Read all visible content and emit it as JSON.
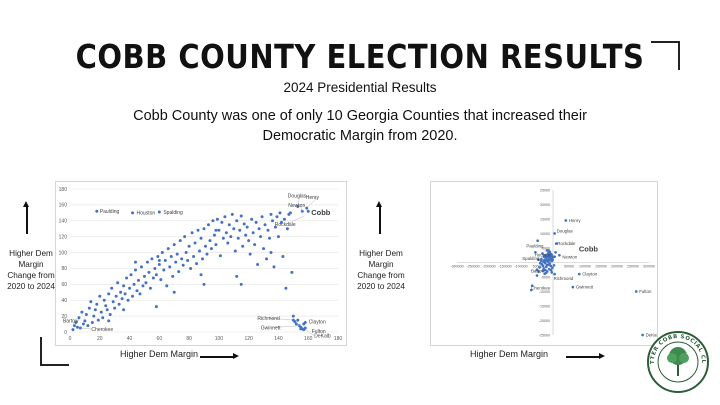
{
  "slide": {
    "title": "COBB COUNTY ELECTION RESULTS",
    "subtitle": "2024 Presidential Results",
    "description": "Cobb County was one of only 10 Georgia Counties that increased their Democratic Margin from 2020."
  },
  "left_panel": {
    "ylabel": "Higher Dem Margin Change from 2020 to 2024",
    "xlabel": "Higher Dem Margin"
  },
  "right_panel": {
    "ylabel": "Higher Dem Margin Change from 2020 to 2024",
    "xlabel": "Higher Dem Margin"
  },
  "logo": {
    "text": "BETTER COBB SOCIAL CLUB"
  },
  "colors": {
    "point": "#4472c4",
    "grid": "#e3e3e3",
    "axis_text": "#595959",
    "leader": "#a6a6a6"
  },
  "chart_data": [
    {
      "type": "scatter",
      "xlim": [
        0,
        180
      ],
      "ylim": [
        0,
        180
      ],
      "xticks": [
        0,
        20,
        40,
        60,
        80,
        100,
        120,
        140,
        160,
        180
      ],
      "yticks": [
        0,
        20,
        40,
        60,
        80,
        100,
        120,
        140,
        160,
        180
      ],
      "grid": "horizontal",
      "points": [
        [
          2,
          3
        ],
        [
          3,
          8
        ],
        [
          4,
          12
        ],
        [
          5,
          6
        ],
        [
          6,
          18
        ],
        [
          7,
          5
        ],
        [
          8,
          25
        ],
        [
          9,
          10
        ],
        [
          10,
          14
        ],
        [
          11,
          22
        ],
        [
          12,
          8
        ],
        [
          13,
          30
        ],
        [
          14,
          38
        ],
        [
          15,
          12
        ],
        [
          16,
          20
        ],
        [
          17,
          28
        ],
        [
          18,
          35
        ],
        [
          19,
          15
        ],
        [
          20,
          45
        ],
        [
          21,
          25
        ],
        [
          22,
          18
        ],
        [
          23,
          40
        ],
        [
          24,
          33
        ],
        [
          25,
          28
        ],
        [
          26,
          48
        ],
        [
          27,
          22
        ],
        [
          28,
          55
        ],
        [
          29,
          38
        ],
        [
          30,
          30
        ],
        [
          31,
          45
        ],
        [
          32,
          62
        ],
        [
          33,
          35
        ],
        [
          34,
          50
        ],
        [
          35,
          42
        ],
        [
          36,
          58
        ],
        [
          37,
          48
        ],
        [
          38,
          68
        ],
        [
          39,
          40
        ],
        [
          40,
          55
        ],
        [
          41,
          72
        ],
        [
          42,
          45
        ],
        [
          43,
          60
        ],
        [
          44,
          78
        ],
        [
          45,
          52
        ],
        [
          46,
          65
        ],
        [
          47,
          48
        ],
        [
          48,
          82
        ],
        [
          49,
          58
        ],
        [
          50,
          70
        ],
        [
          51,
          62
        ],
        [
          52,
          88
        ],
        [
          53,
          75
        ],
        [
          54,
          55
        ],
        [
          55,
          92
        ],
        [
          56,
          68
        ],
        [
          57,
          80
        ],
        [
          58,
          72
        ],
        [
          59,
          95
        ],
        [
          60,
          85
        ],
        [
          61,
          66
        ],
        [
          62,
          100
        ],
        [
          63,
          78
        ],
        [
          64,
          90
        ],
        [
          65,
          58
        ],
        [
          66,
          105
        ],
        [
          67,
          82
        ],
        [
          68,
          95
        ],
        [
          69,
          70
        ],
        [
          70,
          110
        ],
        [
          71,
          88
        ],
        [
          72,
          98
        ],
        [
          73,
          76
        ],
        [
          74,
          115
        ],
        [
          75,
          92
        ],
        [
          76,
          84
        ],
        [
          77,
          120
        ],
        [
          78,
          100
        ],
        [
          79,
          90
        ],
        [
          80,
          108
        ],
        [
          81,
          80
        ],
        [
          82,
          125
        ],
        [
          83,
          95
        ],
        [
          84,
          112
        ],
        [
          85,
          86
        ],
        [
          86,
          128
        ],
        [
          87,
          102
        ],
        [
          88,
          118
        ],
        [
          89,
          92
        ],
        [
          90,
          130
        ],
        [
          91,
          108
        ],
        [
          92,
          98
        ],
        [
          93,
          135
        ],
        [
          94,
          115
        ],
        [
          95,
          105
        ],
        [
          96,
          140
        ],
        [
          97,
          122
        ],
        [
          98,
          110
        ],
        [
          99,
          142
        ],
        [
          100,
          128
        ],
        [
          101,
          96
        ],
        [
          102,
          138
        ],
        [
          103,
          118
        ],
        [
          104,
          145
        ],
        [
          105,
          125
        ],
        [
          106,
          112
        ],
        [
          107,
          135
        ],
        [
          108,
          120
        ],
        [
          109,
          148
        ],
        [
          110,
          130
        ],
        [
          111,
          102
        ],
        [
          112,
          140
        ],
        [
          113,
          118
        ],
        [
          114,
          128
        ],
        [
          115,
          146
        ],
        [
          116,
          108
        ],
        [
          117,
          136
        ],
        [
          118,
          122
        ],
        [
          119,
          132
        ],
        [
          120,
          115
        ],
        [
          121,
          98
        ],
        [
          122,
          142
        ],
        [
          123,
          125
        ],
        [
          124,
          110
        ],
        [
          125,
          138
        ],
        [
          126,
          85
        ],
        [
          127,
          130
        ],
        [
          128,
          120
        ],
        [
          129,
          145
        ],
        [
          130,
          105
        ],
        [
          131,
          135
        ],
        [
          132,
          92
        ],
        [
          133,
          128
        ],
        [
          134,
          118
        ],
        [
          135,
          148
        ],
        [
          136,
          140
        ],
        [
          137,
          82
        ],
        [
          138,
          132
        ],
        [
          139,
          145
        ],
        [
          140,
          120
        ],
        [
          141,
          150
        ],
        [
          142,
          138
        ],
        [
          143,
          95
        ],
        [
          144,
          142
        ],
        [
          145,
          55
        ],
        [
          146,
          130
        ],
        [
          147,
          148
        ],
        [
          148,
          150
        ],
        [
          149,
          75
        ],
        [
          150,
          20
        ],
        [
          151,
          13
        ],
        [
          152,
          10
        ],
        [
          153,
          15
        ],
        [
          154,
          8
        ],
        [
          155,
          6
        ],
        [
          156,
          4
        ],
        [
          157,
          3
        ],
        [
          158,
          12
        ],
        [
          44,
          88
        ],
        [
          70,
          50
        ],
        [
          98,
          128
        ],
        [
          115,
          60
        ],
        [
          135,
          100
        ],
        [
          26,
          14
        ],
        [
          58,
          32
        ],
        [
          90,
          60
        ],
        [
          60,
          90
        ],
        [
          88,
          72
        ],
        [
          36,
          28
        ],
        [
          112,
          70
        ],
        [
          18,
          152
        ],
        [
          42,
          150
        ],
        [
          60,
          151
        ],
        [
          153,
          158
        ],
        [
          156,
          152
        ],
        [
          159,
          156
        ],
        [
          160,
          152
        ],
        [
          150,
          15
        ],
        [
          155,
          4
        ],
        [
          157,
          10
        ],
        [
          158,
          5
        ]
      ],
      "labels": [
        {
          "text": "Paulding",
          "x": 18,
          "y": 152
        },
        {
          "text": "Houston",
          "x": 42,
          "y": 150
        },
        {
          "text": "Spalding",
          "x": 60,
          "y": 151
        },
        {
          "text": "Douglas",
          "x": 153,
          "y": 158
        },
        {
          "text": "Newton",
          "x": 156,
          "y": 152
        },
        {
          "text": "Henry",
          "x": 159,
          "y": 156
        },
        {
          "text": "Rockdale",
          "x": 157,
          "y": 146
        },
        {
          "text": "Cobb",
          "x": 160,
          "y": 152
        },
        {
          "text": "Bartow",
          "x": 2,
          "y": 8
        },
        {
          "text": "Cherokee",
          "x": 7,
          "y": 5
        },
        {
          "text": "Richmond",
          "x": 150,
          "y": 15
        },
        {
          "text": "Clayton",
          "x": 155,
          "y": 13
        },
        {
          "text": "Gwinnett",
          "x": 155,
          "y": 8
        },
        {
          "text": "Fulton",
          "x": 157,
          "y": 5
        },
        {
          "text": "DeKalb",
          "x": 158,
          "y": 3
        }
      ]
    },
    {
      "type": "scatter",
      "xlim": [
        -300000,
        300000
      ],
      "ylim": [
        -25000,
        25000
      ],
      "xticks": [
        -300000,
        -250000,
        -200000,
        -150000,
        -100000,
        -50000,
        0,
        50000,
        100000,
        150000,
        200000,
        250000,
        300000
      ],
      "yticks": [
        -25000,
        -20000,
        -15000,
        -10000,
        -5000,
        0,
        5000,
        10000,
        15000,
        20000,
        25000
      ],
      "grid": "none",
      "points": [
        [
          -30000,
          300
        ],
        [
          -27000,
          800
        ],
        [
          -25000,
          -200
        ],
        [
          -23000,
          1500
        ],
        [
          -22000,
          500
        ],
        [
          -20000,
          2200
        ],
        [
          -19000,
          -800
        ],
        [
          -18000,
          1000
        ],
        [
          -17000,
          2800
        ],
        [
          -16000,
          300
        ],
        [
          -15000,
          1900
        ],
        [
          -14000,
          3300
        ],
        [
          -13000,
          700
        ],
        [
          -12000,
          2500
        ],
        [
          -11000,
          1400
        ],
        [
          -10000,
          3700
        ],
        [
          -9000,
          800
        ],
        [
          -8000,
          2100
        ],
        [
          -7000,
          -1200
        ],
        [
          -6000,
          2900
        ],
        [
          -5000,
          1300
        ],
        [
          -4000,
          500
        ],
        [
          -3000,
          2400
        ],
        [
          -2000,
          -1800
        ],
        [
          -1000,
          900
        ],
        [
          0,
          1800
        ],
        [
          -35000,
          -600
        ],
        [
          -31000,
          -1100
        ],
        [
          -26000,
          2500
        ],
        [
          -21000,
          -1500
        ],
        [
          -40000,
          -200
        ],
        [
          -36000,
          1200
        ],
        [
          -33000,
          3100
        ],
        [
          -29000,
          -2000
        ],
        [
          -24000,
          -2600
        ],
        [
          -18000,
          -3100
        ],
        [
          -12000,
          -2300
        ],
        [
          -8000,
          3000
        ],
        [
          -4000,
          -3400
        ],
        [
          -28000,
          2000
        ],
        [
          -42000,
          -1700
        ],
        [
          -15000,
          -800
        ],
        [
          -19000,
          4200
        ],
        [
          -10000,
          -400
        ],
        [
          -37000,
          600
        ],
        [
          -6000,
          -2600
        ],
        [
          -45000,
          -3200
        ],
        [
          -22000,
          -3600
        ],
        [
          -26000,
          -3900
        ],
        [
          -14000,
          4100
        ],
        [
          -32000,
          -2800
        ],
        [
          3000,
          -1000
        ],
        [
          5000,
          2000
        ],
        [
          -50000,
          -2500
        ],
        [
          -55000,
          3500
        ],
        [
          -48000,
          7500
        ],
        [
          -45000,
          1000
        ],
        [
          -50000,
          -4500
        ],
        [
          -65000,
          -8000
        ],
        [
          -68000,
          -9500
        ],
        [
          5000,
          10000
        ],
        [
          10000,
          6500
        ],
        [
          8000,
          3500
        ],
        [
          40000,
          14500
        ],
        [
          20000,
          2500
        ],
        [
          62000,
          -8500
        ],
        [
          82000,
          -4000
        ],
        [
          260000,
          -10000
        ],
        [
          280000,
          -25000
        ],
        [
          5000,
          -4000
        ]
      ],
      "labels": [
        {
          "text": "Henry",
          "x": 40000,
          "y": 14500
        },
        {
          "text": "Douglas",
          "x": 5000,
          "y": 10000
        },
        {
          "text": "Rockdale",
          "x": 10000,
          "y": 6500
        },
        {
          "text": "Paulding",
          "x": -55000,
          "y": 3500
        },
        {
          "text": "Cobb",
          "x": 62000,
          "y": 4000
        },
        {
          "text": "Spalding",
          "x": -68000,
          "y": 500
        },
        {
          "text": "Houston",
          "x": -45000,
          "y": 1000
        },
        {
          "text": "Newton",
          "x": 20000,
          "y": 2500
        },
        {
          "text": "Clayton",
          "x": 82000,
          "y": -4000
        },
        {
          "text": "Bartow",
          "x": -50000,
          "y": -4500
        },
        {
          "text": "Richmond",
          "x": 5000,
          "y": -4000
        },
        {
          "text": "Cherokee",
          "x": -65000,
          "y": -8000
        },
        {
          "text": "Gwinnett",
          "x": 62000,
          "y": -8500
        },
        {
          "text": "Fulton",
          "x": 260000,
          "y": -10000
        },
        {
          "text": "DeKalb",
          "x": 280000,
          "y": -25000
        }
      ]
    }
  ]
}
